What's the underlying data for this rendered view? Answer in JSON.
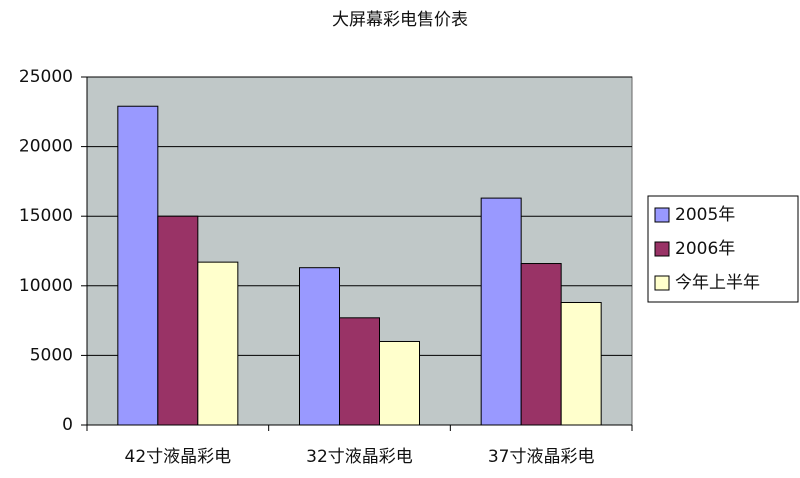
{
  "chart_data": {
    "type": "bar",
    "title": "大屏幕彩电售价表",
    "categories": [
      "42寸液晶彩电",
      "32寸液晶彩电",
      "37寸液晶彩电"
    ],
    "series": [
      {
        "name": "2005年",
        "color": "#9999ff",
        "values": [
          22900,
          11300,
          16300
        ]
      },
      {
        "name": "2006年",
        "color": "#993366",
        "values": [
          15000,
          7700,
          11600
        ]
      },
      {
        "name": "今年上半年",
        "color": "#ffffcc",
        "values": [
          11700,
          6000,
          8800
        ]
      }
    ],
    "ylim": [
      0,
      25000
    ],
    "yticks": [
      0,
      5000,
      10000,
      15000,
      20000,
      25000
    ],
    "grid": true,
    "plot_background": "#c0c8c8",
    "legend": "right"
  }
}
